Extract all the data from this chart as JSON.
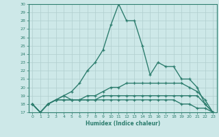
{
  "xlabel": "Humidex (Indice chaleur)",
  "x": [
    0,
    1,
    2,
    3,
    4,
    5,
    6,
    7,
    8,
    9,
    10,
    11,
    12,
    13,
    14,
    15,
    16,
    17,
    18,
    19,
    20,
    21,
    22,
    23
  ],
  "line1": [
    18,
    17,
    18,
    18.5,
    19,
    19.5,
    20.5,
    22,
    23,
    24.5,
    27.5,
    30,
    28,
    28,
    25,
    21.5,
    23,
    22.5,
    22.5,
    21,
    21,
    20,
    18,
    17
  ],
  "line2": [
    18,
    17,
    18,
    18.5,
    19,
    18.5,
    18.5,
    19,
    19,
    19.5,
    20,
    20,
    20.5,
    20.5,
    20.5,
    20.5,
    20.5,
    20.5,
    20.5,
    20.5,
    20,
    19.5,
    18.5,
    17
  ],
  "line3": [
    18,
    17,
    18,
    18.5,
    18.5,
    18.5,
    18.5,
    18.5,
    18.5,
    19,
    19,
    19,
    19,
    19,
    19,
    19,
    19,
    19,
    19,
    19,
    19,
    19,
    18,
    17
  ],
  "line4": [
    18,
    17,
    18,
    18.5,
    18.5,
    18.5,
    18.5,
    18.5,
    18.5,
    18.5,
    18.5,
    18.5,
    18.5,
    18.5,
    18.5,
    18.5,
    18.5,
    18.5,
    18.5,
    18,
    18,
    17.5,
    17.5,
    17
  ],
  "line_color": "#2d7d6e",
  "bg_color": "#cde8e8",
  "grid_color": "#b0cece",
  "ylim": [
    17,
    30
  ],
  "yticks": [
    17,
    18,
    19,
    20,
    21,
    22,
    23,
    24,
    25,
    26,
    27,
    28,
    29,
    30
  ],
  "xticks": [
    0,
    1,
    2,
    3,
    4,
    5,
    6,
    7,
    8,
    9,
    10,
    11,
    12,
    13,
    14,
    15,
    16,
    17,
    18,
    19,
    20,
    21,
    22,
    23
  ]
}
